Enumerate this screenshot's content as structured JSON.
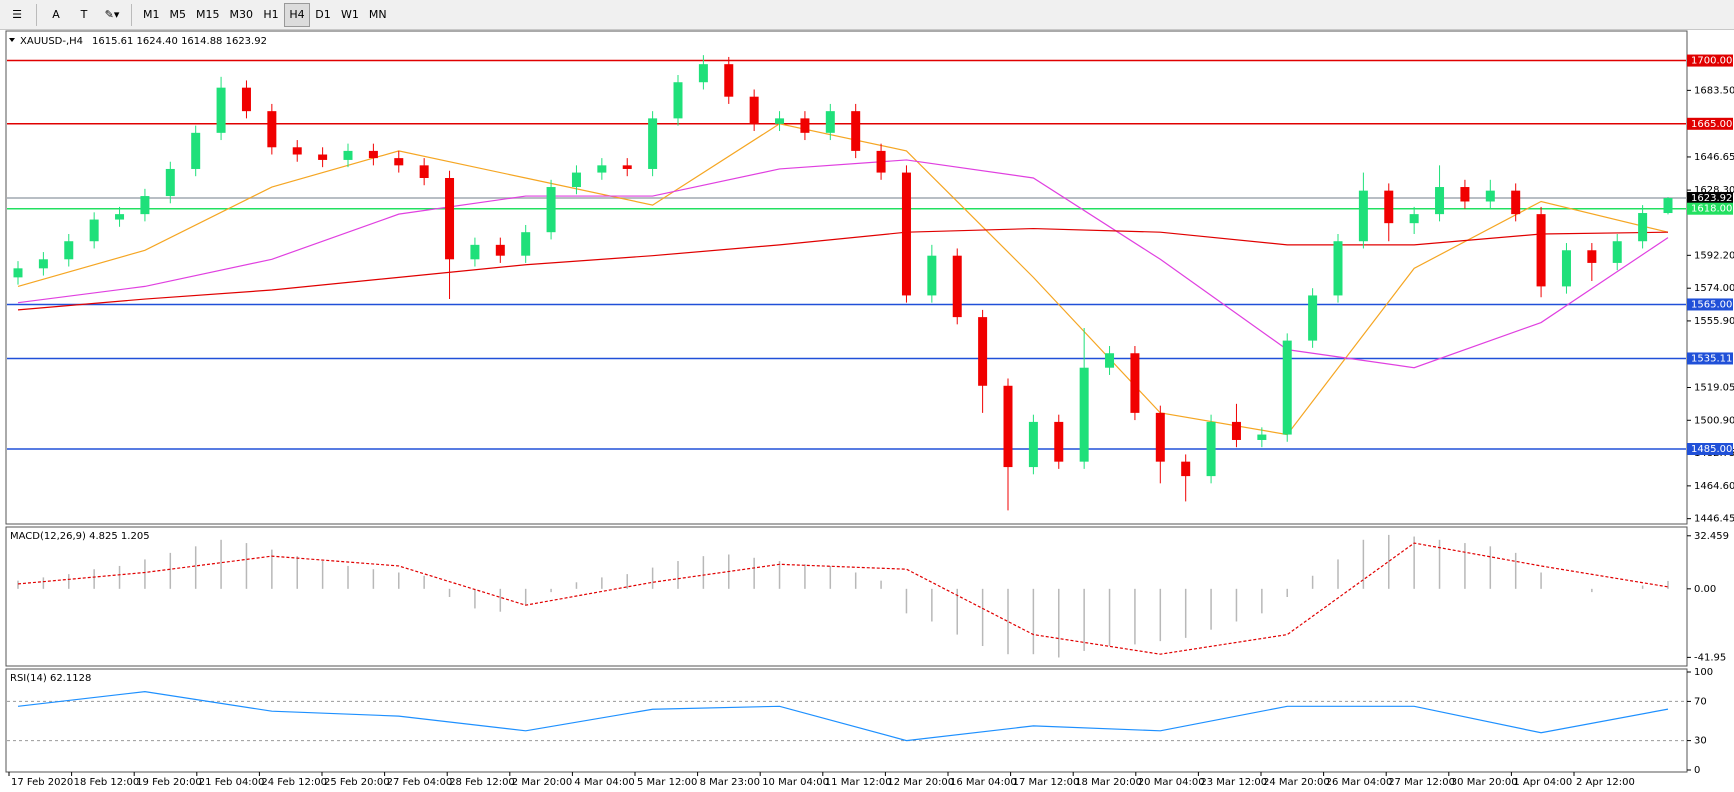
{
  "toolbar": {
    "timeframes": [
      "M1",
      "M5",
      "M15",
      "M30",
      "H1",
      "H4",
      "D1",
      "W1",
      "MN"
    ],
    "active": "H4",
    "tools": [
      "A",
      "T"
    ]
  },
  "chart_data": [
    {
      "type": "candlestick",
      "title": "XAUUSD-,H4",
      "ohlc_label": "1615.61 1624.40 1614.88 1623.92",
      "up_color": "#1fe07a",
      "down_color": "#f00000",
      "open": [
        1580,
        1585,
        1590,
        1600,
        1612,
        1615,
        1625,
        1640,
        1660,
        1685,
        1672,
        1652,
        1648,
        1645,
        1650,
        1646,
        1642,
        1635,
        1590,
        1598,
        1592,
        1605,
        1630,
        1638,
        1642,
        1640,
        1668,
        1688,
        1698,
        1680,
        1665,
        1668,
        1660,
        1672,
        1650,
        1638,
        1570,
        1592,
        1558,
        1520,
        1475,
        1500,
        1478,
        1530,
        1538,
        1505,
        1478,
        1470,
        1500,
        1490,
        1493,
        1545,
        1570,
        1600,
        1628,
        1610,
        1615,
        1630,
        1622,
        1628,
        1615,
        1575,
        1595,
        1588,
        1600,
        1615.61
      ],
      "high": [
        1589,
        1594,
        1604,
        1616,
        1619,
        1629,
        1644,
        1664,
        1691,
        1689,
        1676,
        1656,
        1652,
        1654,
        1654,
        1650,
        1646,
        1639,
        1602,
        1602,
        1609,
        1634,
        1642,
        1646,
        1646,
        1672,
        1692,
        1703,
        1702,
        1684,
        1672,
        1672,
        1676,
        1676,
        1654,
        1642,
        1598,
        1596,
        1562,
        1524,
        1504,
        1504,
        1552,
        1542,
        1542,
        1509,
        1482,
        1504,
        1510,
        1497,
        1549,
        1574,
        1604,
        1638,
        1632,
        1619,
        1642,
        1634,
        1634,
        1632,
        1619,
        1599,
        1599,
        1604,
        1620,
        1624.4
      ],
      "low": [
        1576,
        1581,
        1586,
        1596,
        1608,
        1611,
        1621,
        1636,
        1656,
        1668,
        1648,
        1644,
        1641,
        1641,
        1642,
        1638,
        1631,
        1568,
        1586,
        1588,
        1588,
        1601,
        1626,
        1634,
        1636,
        1636,
        1664,
        1684,
        1676,
        1661,
        1661,
        1656,
        1656,
        1646,
        1634,
        1566,
        1566,
        1554,
        1505,
        1451,
        1471,
        1474,
        1474,
        1526,
        1501,
        1466,
        1456,
        1466,
        1486,
        1486,
        1489,
        1541,
        1566,
        1596,
        1600,
        1604,
        1611,
        1618,
        1618,
        1611,
        1569,
        1571,
        1578,
        1584,
        1596,
        1614.88
      ],
      "close": [
        1585,
        1590,
        1600,
        1612,
        1615,
        1625,
        1640,
        1660,
        1685,
        1672,
        1652,
        1648,
        1645,
        1650,
        1646,
        1642,
        1635,
        1590,
        1598,
        1592,
        1605,
        1630,
        1638,
        1642,
        1640,
        1668,
        1688,
        1698,
        1680,
        1665,
        1668,
        1660,
        1672,
        1650,
        1638,
        1570,
        1592,
        1558,
        1520,
        1475,
        1500,
        1478,
        1530,
        1538,
        1505,
        1478,
        1470,
        1500,
        1490,
        1493,
        1545,
        1570,
        1600,
        1628,
        1610,
        1615,
        1630,
        1622,
        1628,
        1615,
        1575,
        1595,
        1588,
        1600,
        1615.61,
        1623.92
      ],
      "series": [
        {
          "color": "#f5a623",
          "x": [
            0,
            5,
            10,
            15,
            20,
            25,
            30,
            35,
            40,
            45,
            50,
            55,
            60,
            65
          ],
          "values": [
            1575,
            1595,
            1630,
            1650,
            1635,
            1620,
            1665,
            1650,
            1580,
            1505,
            1493,
            1585,
            1622,
            1605
          ]
        },
        {
          "color": "#e040e0",
          "x": [
            0,
            5,
            10,
            15,
            20,
            25,
            30,
            35,
            40,
            45,
            50,
            55,
            60,
            65
          ],
          "values": [
            1566,
            1575,
            1590,
            1615,
            1625,
            1625,
            1640,
            1645,
            1635,
            1590,
            1540,
            1530,
            1555,
            1602
          ]
        },
        {
          "color": "#e00000",
          "x": [
            0,
            5,
            10,
            15,
            20,
            25,
            30,
            35,
            40,
            45,
            50,
            55,
            60,
            65
          ],
          "values": [
            1562,
            1568,
            1573,
            1580,
            1587,
            1592,
            1598,
            1605,
            1607,
            1605,
            1598,
            1598,
            1604,
            1605
          ]
        }
      ],
      "ylim": [
        1444.6,
        1714.7
      ],
      "yticks": [
        {
          "value": 1683.5,
          "label": "1683.50"
        },
        {
          "value": 1646.65,
          "label": "1646.65"
        },
        {
          "value": 1628.3,
          "label": "1628.30"
        },
        {
          "value": 1592.2,
          "label": "1592.20"
        },
        {
          "value": 1574,
          "label": "1574.00"
        },
        {
          "value": 1555.9,
          "label": "1555.90"
        },
        {
          "value": 1519.05,
          "label": "1519.05"
        },
        {
          "value": 1500.9,
          "label": "1500.90"
        },
        {
          "value": 1482.75,
          "label": "1482.75"
        },
        {
          "value": 1464.6,
          "label": "1464.60"
        },
        {
          "value": 1446.45,
          "label": "1446.45"
        }
      ],
      "levels": [
        {
          "value": 1700,
          "label": "1700.00",
          "color": "#e00000"
        },
        {
          "value": 1665,
          "label": "1665.00",
          "color": "#e00000"
        },
        {
          "value": 1623.92,
          "label": "1623.92",
          "color": "#a0a8b0"
        },
        {
          "value": 1618,
          "label": "1618.00",
          "color": "#22e060"
        },
        {
          "value": 1565,
          "label": "1565.00",
          "color": "#2050d8"
        },
        {
          "value": 1535.11,
          "label": "1535.11",
          "color": "#2050d8"
        },
        {
          "value": 1485,
          "label": "1485.00",
          "color": "#2050d8"
        }
      ],
      "x_tick_labels": [
        "17 Feb 2020",
        "18 Feb 12:00",
        "19 Feb 20:00",
        "21 Feb 04:00",
        "24 Feb 12:00",
        "25 Feb 20:00",
        "27 Feb 04:00",
        "28 Feb 12:00",
        "2 Mar 20:00",
        "4 Mar 04:00",
        "5 Mar 12:00",
        "8 Mar 23:00",
        "10 Mar 04:00",
        "11 Mar 12:00",
        "12 Mar 20:00",
        "16 Mar 04:00",
        "17 Mar 12:00",
        "18 Mar 20:00",
        "20 Mar 04:00",
        "23 Mar 12:00",
        "24 Mar 20:00",
        "26 Mar 04:00",
        "27 Mar 12:00",
        "30 Mar 20:00",
        "1 Apr 04:00",
        "2 Apr 12:00"
      ]
    },
    {
      "type": "macd",
      "title": "MACD(12,26,9) 4.825 1.205",
      "color": "#b8b8b8",
      "values": [
        5,
        7,
        9,
        12,
        14,
        18,
        22,
        26,
        30,
        28,
        24,
        20,
        17,
        14,
        12,
        10,
        8,
        -5,
        -12,
        -14,
        -10,
        -2,
        4,
        7,
        9,
        13,
        17,
        20,
        21,
        19,
        17,
        15,
        14,
        10,
        5,
        -15,
        -20,
        -28,
        -35,
        -40,
        -40,
        -42,
        -38,
        -35,
        -34,
        -32,
        -30,
        -25,
        -20,
        -15,
        -5,
        8,
        18,
        30,
        33,
        32,
        30,
        28,
        26,
        22,
        10,
        0,
        -2,
        0,
        2,
        4.825
      ],
      "signal": {
        "color": "#e00000",
        "x": [
          0,
          5,
          10,
          15,
          20,
          25,
          30,
          35,
          40,
          45,
          50,
          55,
          60,
          65
        ],
        "values": [
          3,
          10,
          20,
          14,
          -10,
          4,
          15,
          12,
          -28,
          -40,
          -28,
          28,
          14,
          1.205
        ]
      },
      "ylim": [
        -46,
        36
      ],
      "yticks": [
        32.459,
        {
          "value": 0,
          "label": "0.00"
        },
        -41.95
      ]
    },
    {
      "type": "line",
      "title": "RSI(14) 62.1128",
      "color": "#1e90ff",
      "x": [
        0,
        5,
        10,
        15,
        20,
        25,
        30,
        35,
        40,
        45,
        50,
        55,
        60,
        65
      ],
      "values": [
        65,
        80,
        60,
        55,
        40,
        62,
        65,
        30,
        45,
        40,
        65,
        65,
        38,
        62.1128
      ],
      "ylim": [
        0,
        100
      ],
      "yticks": [
        100,
        70,
        30,
        0
      ],
      "levels": [
        70,
        30
      ]
    }
  ]
}
